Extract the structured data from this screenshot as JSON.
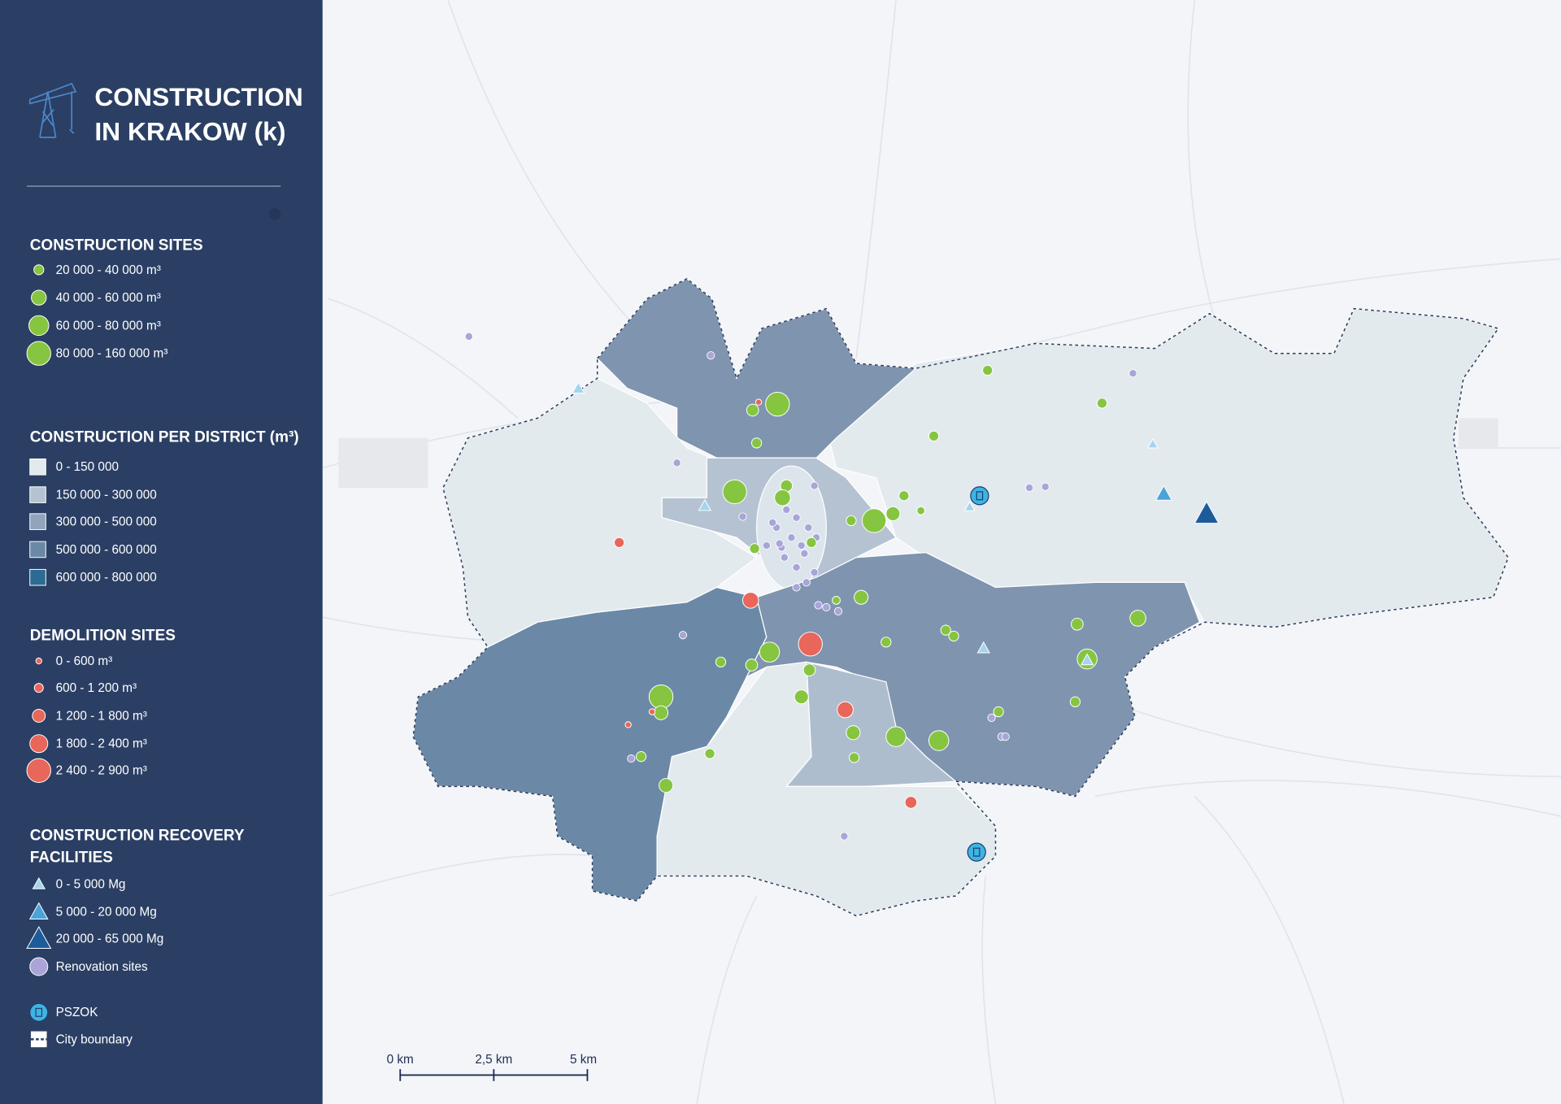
{
  "title": {
    "lines": [
      "CONSTRUCTION",
      "IN KRAKOW (k)"
    ]
  },
  "legend": {
    "sections": [
      {
        "title": "CONSTRUCTION SITES",
        "items": [
          "20 000 - 40 000 m³",
          "40 000 - 60 000 m³",
          "60 000 - 80 000 m³",
          "80 000 - 160 000 m³"
        ]
      },
      {
        "title": "CONSTRUCTION PER DISTRICT (m³)",
        "items": [
          "0 - 150 000",
          "150 000 - 300 000",
          "300 000 - 500 000",
          "500 000 - 600 000",
          "600 000 - 800 000"
        ]
      },
      {
        "title": "DEMOLITION SITES",
        "items": [
          "0 - 600 m³",
          "600 - 1 200 m³",
          "1 200 - 1 800 m³",
          "1 800 - 2 400 m³",
          "2 400 - 2 900 m³"
        ]
      },
      {
        "title_lines": [
          "CONSTRUCTION RECOVERY",
          "FACILITIES"
        ],
        "items": [
          "0 - 5 000 Mg",
          "5 000 - 20 000 Mg",
          "20 000 - 65 000 Mg",
          "Renovation sites"
        ]
      },
      {
        "items": [
          "PSZOK",
          "City boundary"
        ]
      }
    ]
  },
  "scale_bar": {
    "labels": [
      "0 km",
      "2,5 km",
      "5 km"
    ]
  }
}
